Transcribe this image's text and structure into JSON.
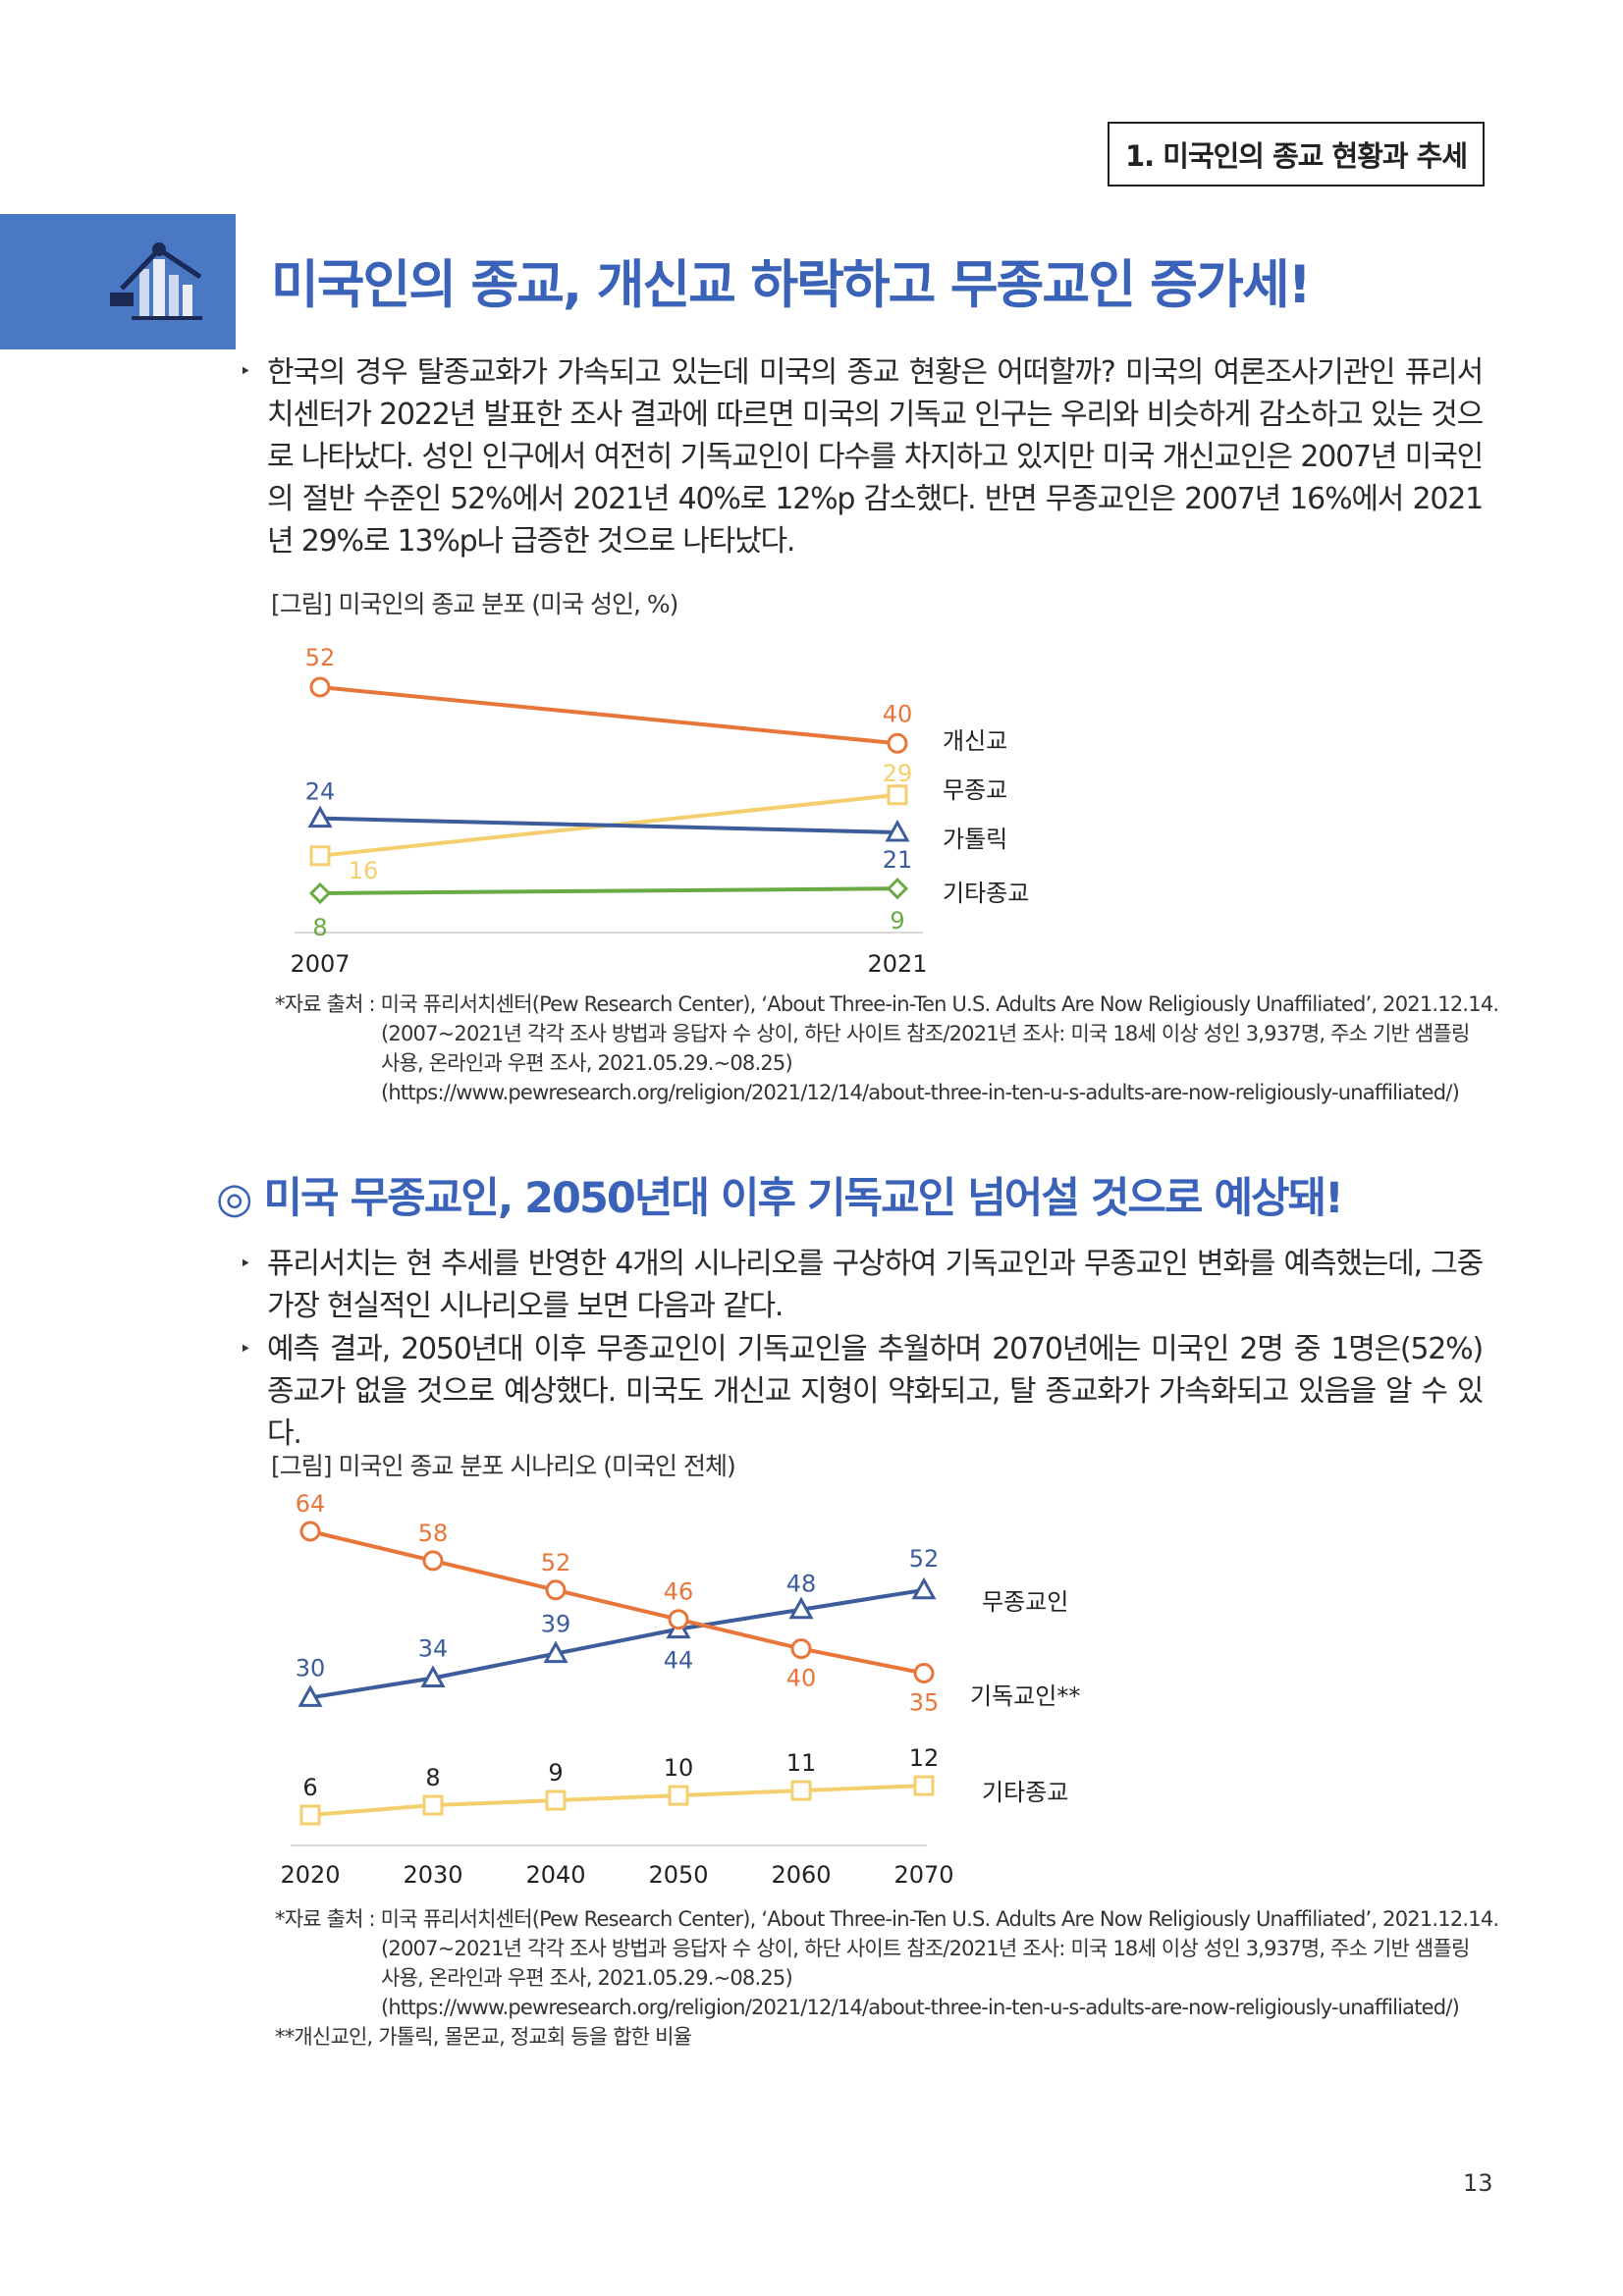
{
  "section_tag": "1. 미국인의 종교 현황과 추세",
  "title": "미국인의 종교, 개신교 하락하고 무종교인 증가세!",
  "intro_paragraph": "한국의 경우 탈종교화가 가속되고 있는데 미국의 종교 현황은 어떠할까? 미국의 여론조사기관인 퓨리서치센터가 2022년 발표한 조사 결과에 따르면 미국의 기독교 인구는 우리와 비슷하게 감소하고 있는 것으로 나타났다. 성인 인구에서 여전히 기독교인이 다수를 차지하고 있지만 미국 개신교인은 2007년 미국인의 절반 수준인 52%에서 2021년 40%로 12%p 감소했다. 반면 무종교인은 2007년 16%에서 2021년 29%로 13%p나 급증한 것으로 나타났다.",
  "figure1": {
    "caption": "[그림] 미국인의 종교 분포 (미국 성인, %)",
    "source_lines": [
      "*자료 출처 : 미국 퓨리서치센터(Pew Research Center), ‘About Three-in-Ten U.S. Adults Are Now Religiously Unaffiliated’, 2021.12.14.",
      "(2007~2021년 각각 조사 방법과 응답자 수 상이, 하단 사이트 참조/2021년 조사: 미국 18세 이상 성인 3,937명, 주소 기반 샘플링",
      "사용, 온라인과 우편 조사, 2021.05.29.~08.25)",
      "(https://www.pewresearch.org/religion/2021/12/14/about-three-in-ten-u-s-adults-are-now-religiously-unaffiliated/)"
    ]
  },
  "subheading": "◎ 미국 무종교인, 2050년대 이후 기독교인 넘어설 것으로 예상돼!",
  "bullets": [
    "퓨리서치는 현 추세를 반영한 4개의 시나리오를 구상하여 기독교인과 무종교인 변화를 예측했는데, 그중 가장 현실적인 시나리오를 보면 다음과 같다.",
    "예측 결과, 2050년대 이후 무종교인이 기독교인을 추월하며 2070년에는 미국인 2명 중 1명은(52%) 종교가 없을 것으로 예상했다. 미국도 개신교 지형이 약화되고, 탈 종교화가 가속화되고 있음을 알 수 있다."
  ],
  "figure2": {
    "caption": "[그림] 미국인 종교 분포 시나리오 (미국인 전체)",
    "source_lines": [
      "*자료 출처 : 미국 퓨리서치센터(Pew Research Center), ‘About Three-in-Ten U.S. Adults Are Now Religiously Unaffiliated’, 2021.12.14.",
      "(2007~2021년 각각 조사 방법과 응답자 수 상이, 하단 사이트 참조/2021년 조사: 미국 18세 이상 성인 3,937명, 주소 기반 샘플링",
      "사용, 온라인과 우편 조사, 2021.05.29.~08.25)",
      "(https://www.pewresearch.org/religion/2021/12/14/about-three-in-ten-u-s-adults-are-now-religiously-unaffiliated/)",
      "**개신교인, 가톨릭, 몰몬교, 정교회 등을 합한 비율"
    ]
  },
  "page_number": "13",
  "colors": {
    "accent_blue": "#3a62b8",
    "orange": "#e8763a",
    "navy": "#3c5c9c",
    "yellow": "#f5cf6e",
    "green": "#6aaa44"
  },
  "chart_data": [
    {
      "type": "line",
      "x": [
        2007,
        2021
      ],
      "series": [
        {
          "name": "개신교",
          "values": [
            52,
            40
          ],
          "color": "#e8763a",
          "marker": "circle"
        },
        {
          "name": "무종교",
          "values": [
            16,
            29
          ],
          "color": "#f5cf6e",
          "marker": "square"
        },
        {
          "name": "가톨릭",
          "values": [
            24,
            21
          ],
          "color": "#3c5c9c",
          "marker": "triangle"
        },
        {
          "name": "기타종교",
          "values": [
            8,
            9
          ],
          "color": "#6aaa44",
          "marker": "diamond"
        }
      ],
      "grid": false,
      "legend": "right"
    },
    {
      "type": "line",
      "x": [
        2020,
        2030,
        2040,
        2050,
        2060,
        2070
      ],
      "series": [
        {
          "name": "무종교인",
          "values": [
            30,
            34,
            39,
            44,
            48,
            52
          ],
          "color": "#3c5c9c",
          "marker": "triangle"
        },
        {
          "name": "기독교인**",
          "values": [
            64,
            58,
            52,
            46,
            40,
            35
          ],
          "color": "#e8763a",
          "marker": "circle"
        },
        {
          "name": "기타종교",
          "values": [
            6,
            8,
            9,
            10,
            11,
            12
          ],
          "color": "#f5cf6e",
          "marker": "square"
        }
      ],
      "grid": false,
      "legend": "right"
    }
  ]
}
